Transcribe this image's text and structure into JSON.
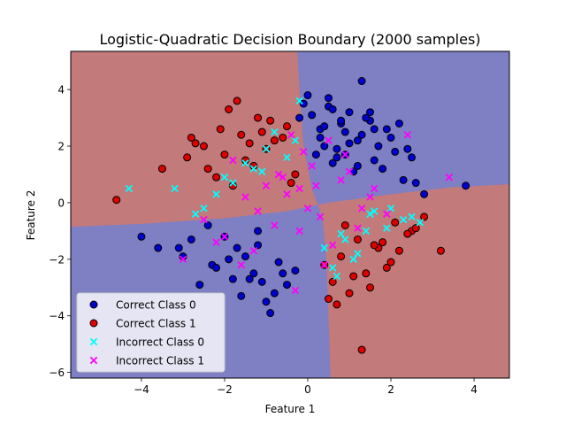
{
  "chart_data": {
    "type": "scatter",
    "title": "Logistic-Quadratic Decision Boundary (2000 samples)",
    "xlabel": "Feature 1",
    "ylabel": "Feature 2",
    "xlim": [
      -5.7,
      4.85
    ],
    "ylim": [
      -6.2,
      5.35
    ],
    "xticks": [
      -4,
      -2,
      0,
      2,
      4
    ],
    "yticks": [
      -6,
      -4,
      -2,
      0,
      2,
      4
    ],
    "grid": false,
    "legend_position": "lower left",
    "region_colors": {
      "class_0": "#7f7fc4",
      "class_1": "#c27a7a"
    },
    "decision_boundary": {
      "description_of_regions": "class 1 in upper-left and lower-right quadrants, class 0 elsewhere",
      "vertical_boundary": [
        [
          -0.25,
          5.35
        ],
        [
          -0.2,
          4.0
        ],
        [
          -0.1,
          2.0
        ],
        [
          0.1,
          0.5
        ],
        [
          0.35,
          -0.5
        ],
        [
          0.45,
          -2.0
        ],
        [
          0.5,
          -4.0
        ],
        [
          0.55,
          -6.2
        ]
      ],
      "horizontal_boundary": [
        [
          -5.7,
          -0.85
        ],
        [
          -4.0,
          -0.75
        ],
        [
          -2.0,
          -0.55
        ],
        [
          -0.5,
          -0.3
        ],
        [
          0.5,
          0.0
        ],
        [
          2.0,
          0.3
        ],
        [
          3.5,
          0.55
        ],
        [
          4.85,
          0.65
        ]
      ]
    },
    "series": [
      {
        "name": "Correct Class 0",
        "marker": "circle",
        "color": "#0000cc",
        "edge": "#000000",
        "x": [
          0.9,
          -1.2,
          0.1,
          1.5,
          -0.3,
          2.1,
          -1.8,
          0.6,
          1.2,
          -0.8,
          0.4,
          1.8,
          -1.5,
          0.0,
          2.5,
          -2.3,
          1.0,
          -0.5,
          0.7,
          1.4,
          -1.0,
          0.3,
          2.0,
          -2.0,
          1.6,
          -1.3,
          0.8,
          -0.1,
          2.3,
          -2.6,
          1.1,
          0.5,
          -0.7,
          1.9,
          -1.6,
          0.2,
          2.8,
          -3.1,
          1.3,
          -0.9,
          0.6,
          2.2,
          -2.4,
          3.8,
          -3.6,
          -4.0,
          1.3,
          -1.2,
          0.7,
          1.5,
          0.4,
          1.0,
          0.9,
          -0.2,
          2.6,
          -1.9,
          -2.8,
          -1.4,
          0.3,
          1.7,
          -0.6,
          -3.0,
          -1.7,
          0.8,
          1.2,
          -2.2,
          0.5,
          2.4,
          -1.1,
          1.6
        ],
        "y": [
          2.5,
          -1.5,
          3.1,
          2.9,
          -2.4,
          1.8,
          -2.7,
          1.4,
          2.2,
          -3.2,
          2.0,
          1.2,
          -1.9,
          3.8,
          1.6,
          -2.2,
          3.2,
          -2.9,
          1.9,
          3.0,
          -3.5,
          2.6,
          2.3,
          -1.2,
          1.5,
          -2.5,
          2.8,
          3.5,
          0.8,
          -2.9,
          1.1,
          3.4,
          -2.1,
          2.6,
          -3.3,
          1.7,
          0.3,
          -1.6,
          2.4,
          -3.9,
          3.3,
          2.8,
          -0.8,
          0.6,
          -1.6,
          -1.2,
          4.3,
          -1.0,
          1.6,
          3.2,
          2.7,
          2.1,
          1.7,
          3.0,
          0.7,
          -2.0,
          -1.3,
          -2.7,
          2.3,
          2.0,
          -2.5,
          -1.9,
          -1.6,
          2.9,
          1.3,
          -2.3,
          3.7,
          1.9,
          -2.8,
          2.6
        ]
      },
      {
        "name": "Correct Class 1",
        "marker": "circle",
        "color": "#dd0000",
        "edge": "#000000",
        "x": [
          -1.5,
          1.2,
          -0.8,
          2.0,
          -2.1,
          0.9,
          -1.0,
          1.7,
          -2.4,
          1.4,
          -0.5,
          2.5,
          -1.8,
          0.6,
          -1.2,
          2.2,
          -2.7,
          1.0,
          -0.3,
          1.9,
          -1.6,
          0.8,
          -2.2,
          3.2,
          -3.5,
          -4.6,
          1.3,
          -1.9,
          0.5,
          2.8,
          -2.5,
          1.1,
          -0.9,
          2.4,
          -1.3,
          1.5,
          -2.9,
          0.7,
          -0.6,
          2.1,
          -1.7,
          -1.1,
          1.8,
          -2.0,
          0.4,
          2.6,
          -2.8,
          1.6,
          -0.4,
          -1.4
        ],
        "y": [
          1.5,
          -1.3,
          2.2,
          -2.1,
          2.6,
          -0.8,
          1.9,
          -1.6,
          1.2,
          -2.5,
          2.7,
          -1.0,
          0.6,
          -2.8,
          3.0,
          -1.7,
          2.1,
          -3.2,
          1.0,
          -2.3,
          2.4,
          -1.9,
          0.9,
          -1.7,
          1.2,
          0.1,
          -5.2,
          3.3,
          -3.4,
          -0.5,
          2.0,
          -2.6,
          2.9,
          -1.1,
          1.3,
          -3.0,
          1.6,
          -3.6,
          2.3,
          -0.7,
          3.6,
          2.5,
          -1.4,
          1.7,
          -2.2,
          -0.9,
          2.3,
          -1.5,
          0.7,
          2.1
        ]
      },
      {
        "name": "Incorrect Class 0",
        "marker": "x",
        "color": "#00ffff",
        "x": [
          -1.8,
          0.9,
          -1.3,
          1.5,
          -2.2,
          0.6,
          -0.8,
          1.9,
          -2.5,
          1.2,
          -0.5,
          2.3,
          -3.2,
          -4.3,
          0.8,
          -1.0,
          1.6,
          -2.0,
          0.4,
          2.7,
          -1.5,
          1.1,
          -0.2,
          2.0,
          -0.3,
          1.4,
          -1.1,
          0.7,
          2.5,
          -2.7
        ],
        "y": [
          0.7,
          -1.3,
          1.2,
          -0.4,
          0.3,
          -2.3,
          2.5,
          -0.9,
          -0.2,
          -1.8,
          1.6,
          -0.6,
          0.5,
          0.5,
          -1.1,
          1.9,
          -0.3,
          0.9,
          -1.6,
          -0.7,
          1.4,
          -2.0,
          3.6,
          -0.2,
          2.2,
          -1.0,
          1.1,
          -2.6,
          -0.5,
          -0.4
        ]
      },
      {
        "name": "Incorrect Class 1",
        "marker": "x",
        "color": "#ff00ff",
        "x": [
          -0.5,
          0.3,
          -1.0,
          0.8,
          -0.2,
          1.3,
          -1.5,
          0.1,
          -0.8,
          1.6,
          -0.1,
          0.6,
          -1.2,
          1.0,
          -0.4,
          1.9,
          -2.0,
          0.2,
          -0.7,
          1.2,
          -1.8,
          0.4,
          -2.5,
          2.4,
          -3.0,
          3.4,
          -0.3,
          0.9,
          -1.3,
          0.5,
          1.5,
          -0.6,
          -2.2,
          0.0,
          -1.6,
          -0.2
        ],
        "y": [
          0.3,
          -0.5,
          0.6,
          0.8,
          -1.0,
          -0.2,
          0.2,
          1.3,
          -0.8,
          0.5,
          1.8,
          -1.5,
          -0.3,
          1.1,
          2.4,
          -0.4,
          -1.2,
          0.6,
          1.0,
          -0.9,
          1.5,
          -2.2,
          -0.6,
          2.4,
          -2.0,
          0.9,
          -3.1,
          1.7,
          -1.7,
          2.2,
          0.2,
          0.9,
          -1.4,
          -0.2,
          -2.2,
          0.5
        ]
      }
    ],
    "legend": [
      {
        "label": "Correct Class 0",
        "marker": "circle",
        "color": "#0000cc"
      },
      {
        "label": "Correct Class 1",
        "marker": "circle",
        "color": "#dd0000"
      },
      {
        "label": "Incorrect Class 0",
        "marker": "x",
        "color": "#00ffff"
      },
      {
        "label": "Incorrect Class 1",
        "marker": "x",
        "color": "#ff00ff"
      }
    ]
  }
}
